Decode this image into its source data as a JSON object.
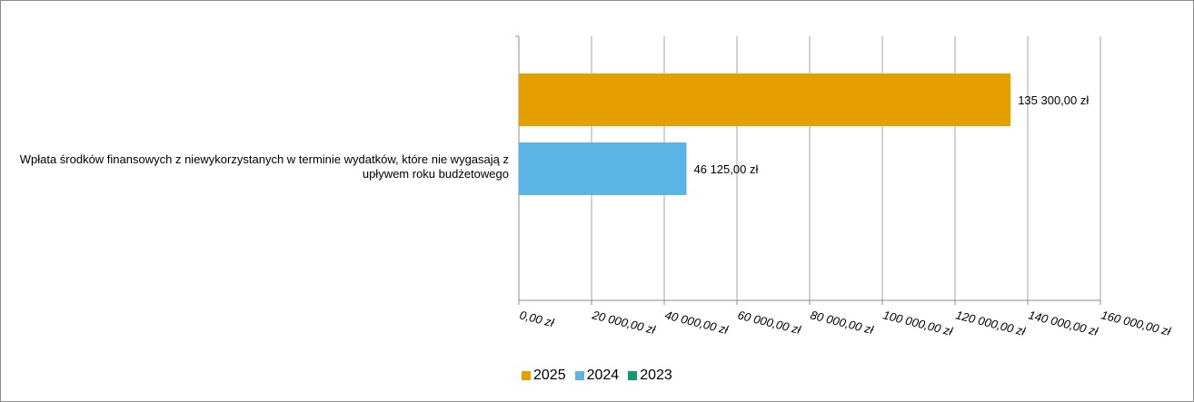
{
  "chart_data": {
    "type": "bar",
    "orientation": "horizontal",
    "categories": [
      "Wpłata środków finansowych z niewykorzystanych w terminie wydatków, które nie wygasają z upływem roku budżetowego"
    ],
    "series": [
      {
        "name": "2025",
        "values": [
          135300
        ],
        "label": "135 300,00 zł",
        "color": "#e5a000"
      },
      {
        "name": "2024",
        "values": [
          46125
        ],
        "label": "46 125,00 zł",
        "color": "#5ab4e6"
      },
      {
        "name": "2023",
        "values": [
          0
        ],
        "label": "",
        "color": "#0f9b6e"
      }
    ],
    "xlim": [
      0,
      160000
    ],
    "x_ticks": [
      0,
      20000,
      40000,
      60000,
      80000,
      100000,
      120000,
      140000,
      160000
    ],
    "x_tick_labels": [
      "0,00 zł",
      "20 000,00 zł",
      "40 000,00 zł",
      "60 000,00 zł",
      "80 000,00 zł",
      "100 000,00 zł",
      "120 000,00 zł",
      "140 000,00 zł",
      "160 000,00 zł"
    ],
    "grid": true,
    "legend_position": "bottom"
  }
}
